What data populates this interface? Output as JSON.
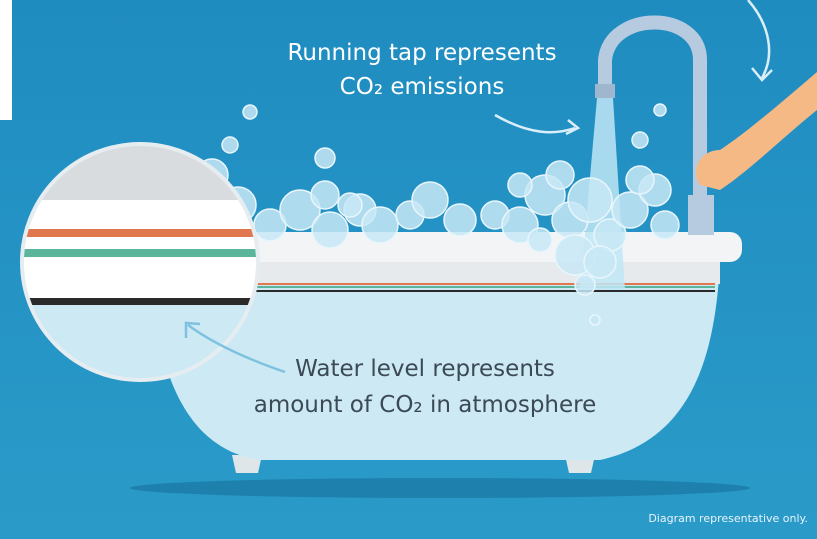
{
  "labels": {
    "tap": [
      "Running tap represents",
      "CO₂ emissions"
    ],
    "water": [
      "Water level represents",
      "amount of CO₂ in atmosphere"
    ]
  },
  "footnote": "Diagram representative only."
}
